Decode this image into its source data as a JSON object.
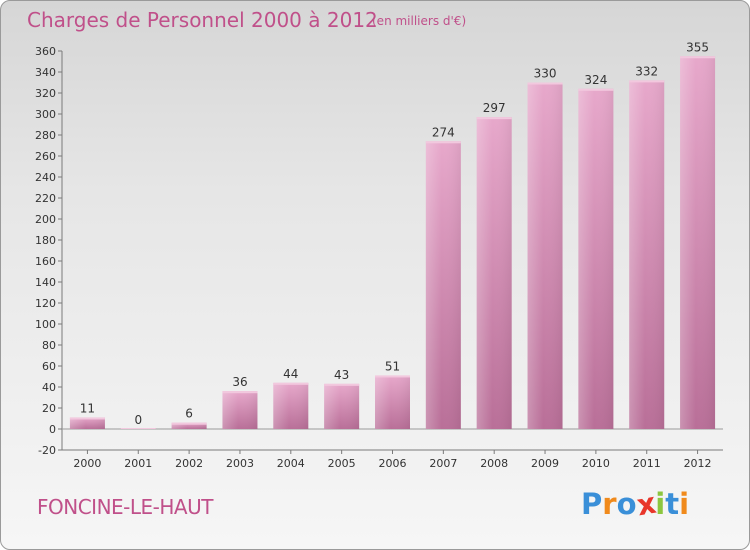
{
  "header": {
    "title": "Charges de Personnel 2000 à 2012",
    "subtitle": "(en milliers d'€)"
  },
  "footer": {
    "place": "FONCINE-LE-HAUT",
    "logo_letters": [
      "P",
      "r",
      "o",
      "x",
      "i",
      "t",
      "i"
    ],
    "logo_colors": [
      "#3a8fd8",
      "#f08a1c",
      "#3a8fd8",
      "#e8352a",
      "#8cc63f",
      "#3a8fd8",
      "#f08a1c"
    ]
  },
  "colors": {
    "bar": "#d98db7",
    "bar_light": "#e9b3d1",
    "bar_dark": "#b56b95",
    "text": "#333333",
    "title": "#c0508a"
  },
  "chart_data": {
    "type": "bar",
    "categories": [
      "2000",
      "2001",
      "2002",
      "2003",
      "2004",
      "2005",
      "2006",
      "2007",
      "2008",
      "2009",
      "2010",
      "2011",
      "2012"
    ],
    "values": [
      11,
      0,
      6,
      36,
      44,
      43,
      51,
      274,
      297,
      330,
      324,
      332,
      355
    ],
    "ylim": [
      -20,
      360
    ],
    "yticks": [
      -20,
      0,
      20,
      40,
      60,
      80,
      100,
      120,
      140,
      160,
      180,
      200,
      220,
      240,
      260,
      280,
      300,
      320,
      340,
      360
    ],
    "grid": false
  }
}
